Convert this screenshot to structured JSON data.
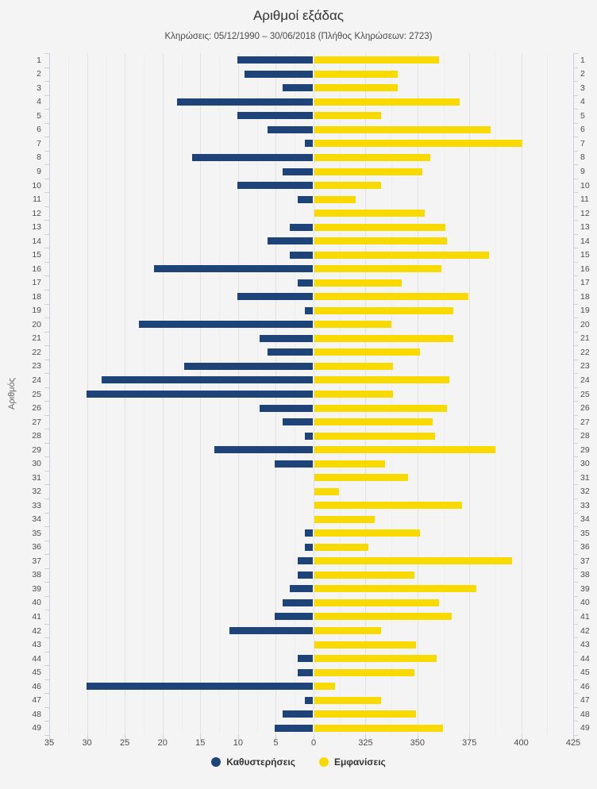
{
  "header": {
    "title": "Αριθμοί εξάδας",
    "subtitle": "Κληρώσεις: 05/12/1990 – 30/06/2018 (Πλήθος Κληρώσεων: 2723)"
  },
  "legend": [
    {
      "label": "Καθυστερήσεις",
      "color": "#1d4379"
    },
    {
      "label": "Εμφανίσεις",
      "color": "#f8d900"
    }
  ],
  "colors": {
    "delays": "#1d4379",
    "appearances": "#f8d900",
    "background": "#f4f4f4",
    "gridline": "#e1e1e1",
    "axis": "#c9d0e4"
  },
  "chart_data": {
    "type": "bar",
    "orientation": "horizontal-diverging",
    "title": "Αριθμοί εξάδας",
    "subtitle": "Κληρώσεις: 05/12/1990 – 30/06/2018 (Πλήθος Κληρώσεων: 2723)",
    "ylabel": "Αριθμός",
    "xlabel": "",
    "grid": true,
    "legend_position": "bottom",
    "categories": [
      1,
      2,
      3,
      4,
      5,
      6,
      7,
      8,
      9,
      10,
      11,
      12,
      13,
      14,
      15,
      16,
      17,
      18,
      19,
      20,
      21,
      22,
      23,
      24,
      25,
      26,
      27,
      28,
      29,
      30,
      31,
      32,
      33,
      34,
      35,
      36,
      37,
      38,
      39,
      40,
      41,
      42,
      43,
      44,
      45,
      46,
      47,
      48,
      49
    ],
    "left_axis": {
      "name": "Καθυστερήσεις",
      "min": 0,
      "max": 35,
      "ticks": [
        35,
        30,
        25,
        20,
        15,
        10,
        5,
        0
      ]
    },
    "right_axis": {
      "name": "Εμφανίσεις",
      "min": 300,
      "max": 425,
      "ticks": [
        325,
        350,
        375,
        400,
        425
      ]
    },
    "series": [
      {
        "name": "Καθυστερήσεις",
        "axis": "left",
        "color": "#1d4379",
        "values": [
          10,
          9,
          4,
          18,
          10,
          6,
          1,
          16,
          4,
          10,
          2,
          0,
          3,
          6,
          3,
          21,
          2,
          10,
          1,
          23,
          7,
          6,
          17,
          28,
          30,
          7,
          4,
          1,
          13,
          5,
          0,
          0,
          0,
          0,
          1,
          1,
          2,
          2,
          3,
          4,
          5,
          11,
          0,
          2,
          2,
          30,
          1,
          4,
          5
        ]
      },
      {
        "name": "Εμφανίσεις",
        "axis": "right",
        "color": "#f8d900",
        "values": [
          360,
          340,
          340,
          370,
          332,
          385,
          400,
          356,
          352,
          332,
          320,
          353,
          363,
          364,
          384,
          361,
          342,
          374,
          367,
          337,
          367,
          351,
          338,
          365,
          338,
          364,
          357,
          358,
          387,
          334,
          345,
          312,
          371,
          329,
          351,
          326,
          395,
          348,
          378,
          360,
          366,
          332,
          349,
          359,
          348,
          310,
          332,
          349,
          362
        ]
      }
    ]
  }
}
